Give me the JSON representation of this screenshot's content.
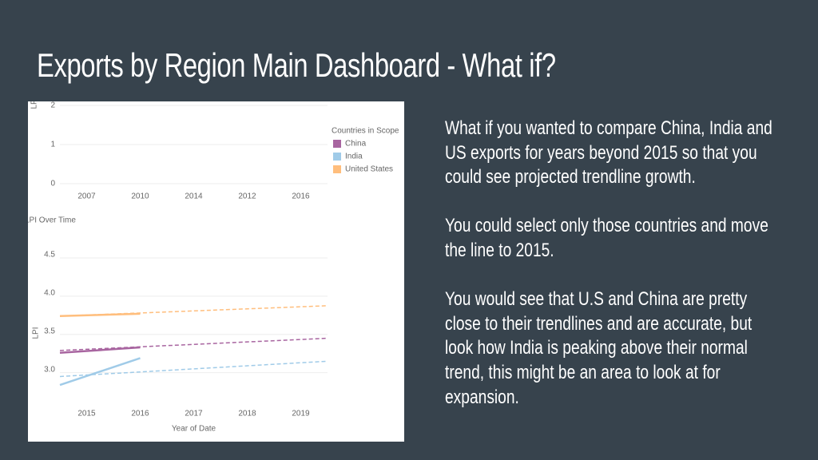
{
  "header": {
    "title": "Exports by Region Main Dashboard - What if?"
  },
  "paragraphs": [
    "What if you wanted to compare China, India and US exports for years beyond 2015 so that you could see projected trendline growth.",
    "You could select only those countries and move the line to 2015.",
    "You would see that U.S and China are pretty close to their trendlines and are accurate, but look how India is peaking above their normal trend, this might be an area to look at for expansion."
  ],
  "chart_data": [
    {
      "type": "line",
      "ylabel": "LPI",
      "categories": [
        "2007",
        "2010",
        "2014",
        "2012",
        "2016"
      ],
      "ylim": [
        0,
        2
      ],
      "yticks": [
        0,
        1,
        2
      ],
      "grid": true,
      "legend_title": "Countries in Scope",
      "series": [
        {
          "name": "China",
          "color": "#a865a0"
        },
        {
          "name": "India",
          "color": "#a0cbe8"
        },
        {
          "name": "United States",
          "color": "#ffbe7d"
        }
      ]
    },
    {
      "type": "line",
      "title": "LPI Over Time",
      "xlabel": "Year of Date",
      "ylabel": "LPI",
      "xlim": [
        2014.5,
        2019.5
      ],
      "xticks": [
        2015,
        2016,
        2017,
        2018,
        2019
      ],
      "ylim": [
        2.6,
        4.75
      ],
      "yticks": [
        {
          "value": 3,
          "label": "3.0"
        },
        3.5,
        {
          "value": 4,
          "label": "4.0"
        },
        4.5
      ],
      "grid": true,
      "series": [
        {
          "name": "China",
          "color": "#a865a0",
          "x": [
            2014.5,
            2016
          ],
          "values": [
            3.26,
            3.33
          ],
          "trend_x": [
            2014.5,
            2019.5
          ],
          "trend_values": [
            3.29,
            3.45
          ]
        },
        {
          "name": "India",
          "color": "#a0cbe8",
          "x": [
            2014.5,
            2016
          ],
          "values": [
            2.84,
            3.19
          ],
          "trend_x": [
            2014.5,
            2019.5
          ],
          "trend_values": [
            2.95,
            3.15
          ]
        },
        {
          "name": "United States",
          "color": "#ffbe7d",
          "x": [
            2014.5,
            2016
          ],
          "values": [
            3.74,
            3.77
          ],
          "trend_x": [
            2014.5,
            2019.5
          ],
          "trend_values": [
            3.74,
            3.875
          ]
        }
      ]
    }
  ]
}
